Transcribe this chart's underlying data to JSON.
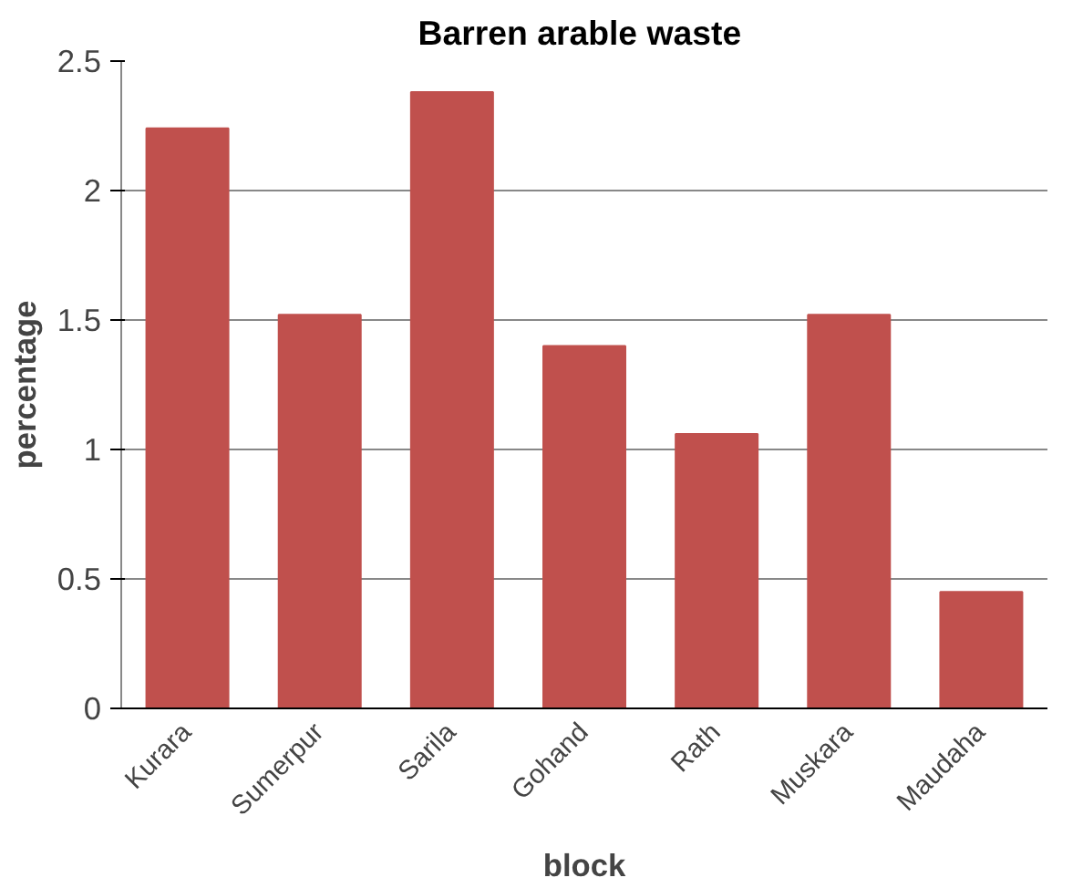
{
  "chart_data": {
    "type": "bar",
    "title": "Barren arable  waste",
    "xlabel": "block",
    "ylabel": "percentage",
    "categories": [
      "Kurara",
      "Sumerpur",
      "Sarila",
      "Gohand",
      "Rath",
      "Muskara",
      "Maudaha"
    ],
    "values": [
      2.24,
      1.52,
      2.38,
      1.4,
      1.06,
      1.52,
      0.45
    ],
    "color": "#c0504d",
    "ylim": [
      0,
      2.5
    ],
    "yticks": [
      0,
      0.5,
      1,
      1.5,
      2,
      2.5
    ],
    "grid": "y"
  }
}
